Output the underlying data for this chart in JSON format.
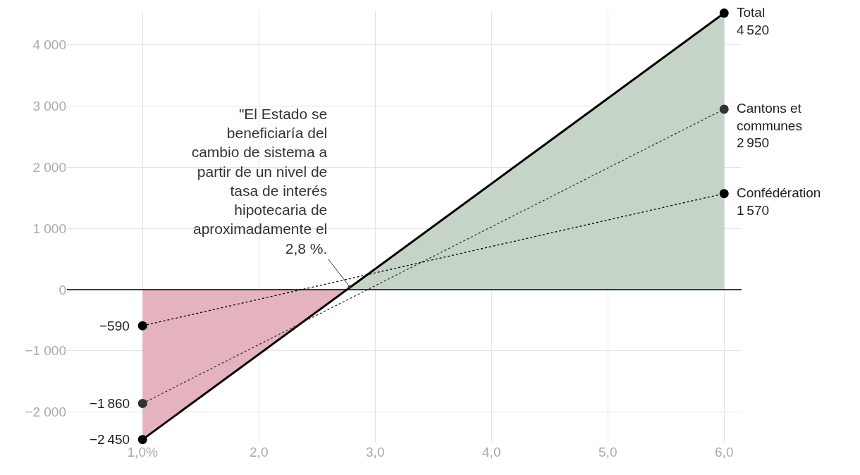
{
  "chart_data": {
    "type": "line",
    "x": [
      1,
      6
    ],
    "series": [
      {
        "name": "Total",
        "type": "area",
        "color": "#000000",
        "colors": [
          "#e5b3bd",
          "#c5d4c6"
        ],
        "line_style": "solid",
        "values": [
          -2450,
          4520
        ]
      },
      {
        "name": "Cantons et communes",
        "color": "#333333",
        "line_style": "dotted",
        "values": [
          -1860,
          2950
        ]
      },
      {
        "name": "Confédération",
        "color": "#000000",
        "line_style": "dotted",
        "values": [
          -590,
          1570
        ]
      }
    ],
    "data_labels": true,
    "marker": "circle",
    "grid": true,
    "legend": false,
    "xlim": [
      0.35,
      6.15
    ],
    "xticks": [
      {
        "value": 1,
        "label": "1,0%"
      },
      {
        "value": 2,
        "label": "2,0"
      },
      {
        "value": 3,
        "label": "3,0"
      },
      {
        "value": 4,
        "label": "4,0"
      },
      {
        "value": 5,
        "label": "5,0"
      },
      {
        "value": 6,
        "label": "6,0"
      }
    ],
    "ylim": [
      -2500,
      4550
    ],
    "yticks": [
      {
        "value": -2000,
        "label": "−2 000"
      },
      {
        "value": -1000,
        "label": "−1 000"
      },
      0,
      {
        "value": 1000,
        "label": "1 000"
      },
      {
        "value": 2000,
        "label": "2 000"
      },
      {
        "value": 3000,
        "label": "3 000"
      },
      {
        "value": 4000,
        "label": "4 000"
      }
    ],
    "ref_lines": [
      {
        "axis": "y",
        "value": 0,
        "color": "#000000"
      }
    ],
    "annotations": [
      {
        "text": "\"El Estado se beneficiaría del cambio de sistema a partir de un nivel de tasa de interés hipotecaria de aproximadamente el 2,8 %.",
        "x": 2.8,
        "y": 0
      }
    ]
  }
}
